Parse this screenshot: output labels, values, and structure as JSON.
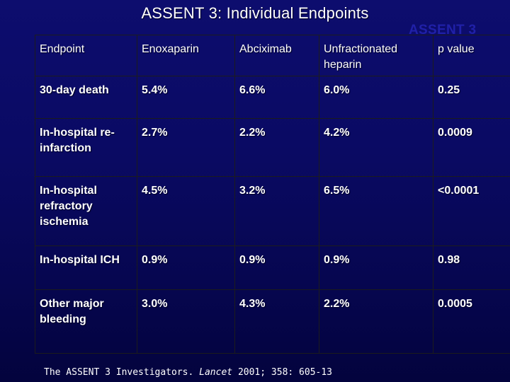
{
  "slide": {
    "title": "ASSENT 3:  Individual Endpoints",
    "watermark": "ASSENT 3"
  },
  "table": {
    "headers": [
      "Endpoint",
      "Enoxaparin",
      "Abciximab",
      "Unfractionated heparin",
      "p value"
    ],
    "rows": [
      {
        "endpoint": "30-day death",
        "enoxaparin": "5.4%",
        "abciximab": "6.6%",
        "ufh": "6.0%",
        "p_value": "0.25"
      },
      {
        "endpoint": "In-hospital re-infarction",
        "enoxaparin": "2.7%",
        "abciximab": "2.2%",
        "ufh": "4.2%",
        "p_value": "0.0009"
      },
      {
        "endpoint": "In-hospital refractory ischemia",
        "enoxaparin": "4.5%",
        "abciximab": "3.2%",
        "ufh": "6.5%",
        "p_value": "<0.0001"
      },
      {
        "endpoint": "In-hospital ICH",
        "enoxaparin": "0.9%",
        "abciximab": "0.9%",
        "ufh": "0.9%",
        "p_value": "0.98"
      },
      {
        "endpoint": "Other major bleeding",
        "enoxaparin": "3.0%",
        "abciximab": "4.3%",
        "ufh": "2.2%",
        "p_value": "0.0005"
      }
    ]
  },
  "citation": {
    "prefix": "The ASSENT 3 Investigators. ",
    "journal": "Lancet",
    "suffix": " 2001; 358: 605-13"
  }
}
